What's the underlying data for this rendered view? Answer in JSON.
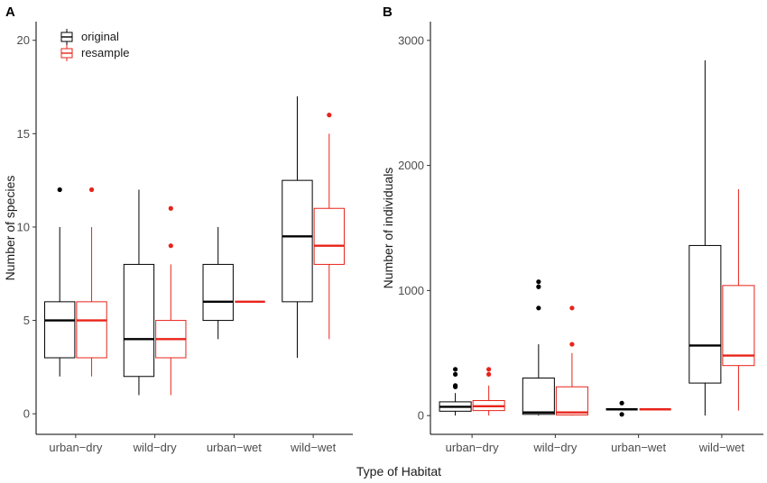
{
  "chart_data": [
    {
      "panel": "A",
      "type": "box",
      "xlabel": "",
      "ylabel": "Number of species",
      "ylim": [
        -1.1,
        21
      ],
      "yticks": [
        "0",
        "5",
        "10",
        "15",
        "20"
      ],
      "categories": [
        "urban−dry",
        "wild−dry",
        "urban−wet",
        "wild−wet"
      ],
      "legend": {
        "placement": "top-left",
        "entries": [
          "original",
          "resample"
        ]
      },
      "series": [
        {
          "name": "original",
          "color": "#000000",
          "boxes": [
            {
              "category": "urban−dry",
              "whisker_low": 2,
              "q1": 3,
              "median": 5,
              "q3": 6,
              "whisker_high": 10,
              "outliers": [
                12
              ]
            },
            {
              "category": "wild−dry",
              "whisker_low": 1,
              "q1": 2,
              "median": 4,
              "q3": 8,
              "whisker_high": 12,
              "outliers": []
            },
            {
              "category": "urban−wet",
              "whisker_low": 4,
              "q1": 5,
              "median": 6,
              "q3": 8,
              "whisker_high": 10,
              "outliers": []
            },
            {
              "category": "wild−wet",
              "whisker_low": 3,
              "q1": 6,
              "median": 9.5,
              "q3": 12.5,
              "whisker_high": 17,
              "outliers": []
            }
          ]
        },
        {
          "name": "resample",
          "color": "#e8231a",
          "boxes": [
            {
              "category": "urban−dry",
              "whisker_low": 2,
              "q1": 3,
              "median": 5,
              "q3": 6,
              "whisker_high": 10,
              "outliers": [
                12
              ]
            },
            {
              "category": "wild−dry",
              "whisker_low": 1,
              "q1": 3,
              "median": 4,
              "q3": 5,
              "whisker_high": 8,
              "outliers": [
                9,
                11
              ]
            },
            {
              "category": "urban−wet",
              "whisker_low": 6,
              "q1": 6,
              "median": 6,
              "q3": 6,
              "whisker_high": 6,
              "outliers": []
            },
            {
              "category": "wild−wet",
              "whisker_low": 4,
              "q1": 8,
              "median": 9,
              "q3": 11,
              "whisker_high": 15,
              "outliers": [
                16
              ]
            }
          ]
        }
      ]
    },
    {
      "panel": "B",
      "type": "box",
      "xlabel": "",
      "ylabel": "Number of individuals",
      "ylim": [
        -150,
        3150
      ],
      "yticks": [
        "0",
        "1000",
        "2000",
        "3000"
      ],
      "categories": [
        "urban−dry",
        "wild−dry",
        "urban−wet",
        "wild−wet"
      ],
      "series": [
        {
          "name": "original",
          "color": "#000000",
          "boxes": [
            {
              "category": "urban−dry",
              "whisker_low": 0,
              "q1": 35,
              "median": 70,
              "q3": 110,
              "whisker_high": 180,
              "outliers": [
                230,
                240,
                330,
                370
              ]
            },
            {
              "category": "wild−dry",
              "whisker_low": 0,
              "q1": 10,
              "median": 25,
              "q3": 300,
              "whisker_high": 570,
              "outliers": [
                860,
                1030,
                1070
              ]
            },
            {
              "category": "urban−wet",
              "whisker_low": 50,
              "q1": 50,
              "median": 50,
              "q3": 50,
              "whisker_high": 50,
              "outliers": [
                10,
                100
              ]
            },
            {
              "category": "wild−wet",
              "whisker_low": 0,
              "q1": 260,
              "median": 560,
              "q3": 1360,
              "whisker_high": 2840,
              "outliers": []
            }
          ]
        },
        {
          "name": "resample",
          "color": "#e8231a",
          "boxes": [
            {
              "category": "urban−dry",
              "whisker_low": 0,
              "q1": 40,
              "median": 75,
              "q3": 120,
              "whisker_high": 240,
              "outliers": [
                330,
                370
              ]
            },
            {
              "category": "wild−dry",
              "whisker_low": 0,
              "q1": 5,
              "median": 25,
              "q3": 230,
              "whisker_high": 500,
              "outliers": [
                570,
                860
              ]
            },
            {
              "category": "urban−wet",
              "whisker_low": 50,
              "q1": 50,
              "median": 50,
              "q3": 50,
              "whisker_high": 50,
              "outliers": []
            },
            {
              "category": "wild−wet",
              "whisker_low": 40,
              "q1": 400,
              "median": 480,
              "q3": 1040,
              "whisker_high": 1810,
              "outliers": []
            }
          ]
        }
      ]
    }
  ],
  "shared_xlabel": "Type of Habitat"
}
